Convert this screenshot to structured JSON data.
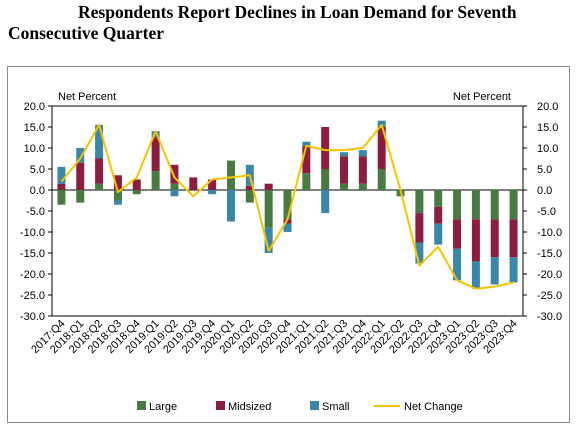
{
  "title_line1": "Respondents Report Declines in Loan Demand for Seventh",
  "title_line2": "Consecutive Quarter",
  "chart_data": {
    "type": "bar",
    "stacked": true,
    "left_axis_label": "Net Percent",
    "right_axis_label": "Net Percent",
    "ylim": [
      -30,
      20
    ],
    "yticks": [
      "20.0",
      "15.0",
      "10.0",
      "5.0",
      "0.0",
      "-5.0",
      "-10.0",
      "-15.0",
      "-20.0",
      "-25.0",
      "-30.0"
    ],
    "grid": false,
    "legend_position": "bottom",
    "categories": [
      "2017:Q4",
      "2018:Q1",
      "2018:Q2",
      "2018:Q3",
      "2018:Q4",
      "2019:Q1",
      "2019:Q2",
      "2019:Q3",
      "2019:Q4",
      "2020:Q1",
      "2020:Q2",
      "2020:Q3",
      "2020:Q4",
      "2021:Q1",
      "2021:Q2",
      "2021:Q3",
      "2021:Q4",
      "2022:Q1",
      "2022:Q2",
      "2022:Q3",
      "2022:Q4",
      "2023:Q1",
      "2023:Q2",
      "2023:Q3",
      "2023:Q4"
    ],
    "series": [
      {
        "name": "Large",
        "kind": "bar",
        "color": "#4a7a43",
        "values": [
          -3.5,
          -3,
          1.5,
          -2.5,
          -1,
          4.5,
          1.5,
          0,
          0,
          7,
          -3,
          -9,
          -7,
          4,
          5,
          1.5,
          1.5,
          5,
          -1.5,
          -5.5,
          -4,
          -7,
          -7,
          -7,
          -7
        ]
      },
      {
        "name": "Midsized",
        "kind": "bar",
        "color": "#8b1e3f",
        "values": [
          1.5,
          6.5,
          6,
          3.5,
          2.5,
          8,
          4.5,
          3,
          2.5,
          0,
          1,
          1.5,
          -1,
          6.5,
          10,
          6.5,
          6.5,
          10,
          0,
          -7,
          -4,
          -7,
          -10,
          -9,
          -9
        ]
      },
      {
        "name": "Small",
        "kind": "bar",
        "color": "#3a87a8",
        "values": [
          4,
          3.5,
          8,
          -1,
          0,
          1.5,
          -1.5,
          0,
          -1,
          -7.5,
          5,
          -6,
          -2,
          1,
          -5.5,
          1,
          1.5,
          1.5,
          0,
          -5,
          -5,
          -7.5,
          -6.5,
          -6.5,
          -6
        ]
      },
      {
        "name": "Net Change",
        "kind": "line",
        "color": "#f5c400",
        "values": [
          2,
          7.5,
          15.5,
          -0.5,
          3,
          14,
          3,
          -1.5,
          2.5,
          3,
          3.5,
          -14.5,
          -7,
          10.5,
          9.5,
          9.5,
          10,
          15.5,
          0,
          -18,
          -13.5,
          -21.5,
          -23.5,
          -23,
          -22
        ]
      }
    ]
  }
}
